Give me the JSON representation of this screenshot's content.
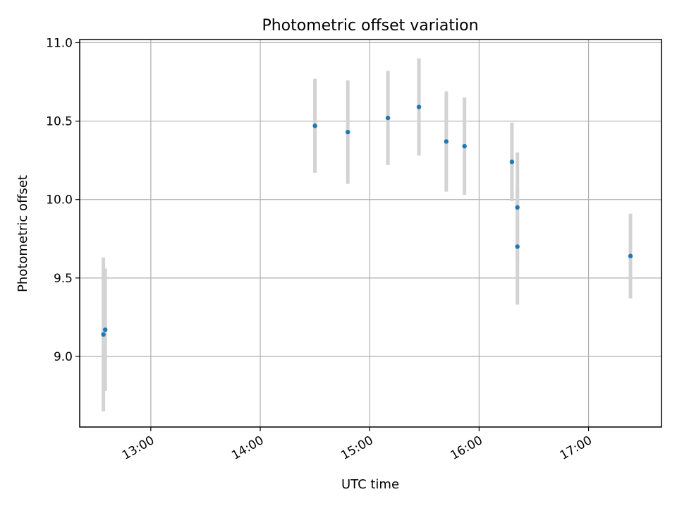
{
  "chart_data": {
    "type": "scatter",
    "title": "Photometric offset variation",
    "xlabel": "UTC time",
    "ylabel": "Photometric offset",
    "x_ticks": [
      "13:00",
      "14:00",
      "15:00",
      "16:00",
      "17:00"
    ],
    "y_ticks": [
      "9.0",
      "9.5",
      "10.0",
      "10.5",
      "11.0"
    ],
    "x_tick_times": [
      "13:00",
      "14:00",
      "15:00",
      "16:00",
      "17:00"
    ],
    "y_tick_values": [
      9.0,
      9.5,
      10.0,
      10.5,
      11.0
    ],
    "xlim": [
      "12:21",
      "17:40"
    ],
    "ylim": [
      8.55,
      11.02
    ],
    "grid": true,
    "errorbar_color": "#d3d3d3",
    "point_color": "#1f77b4",
    "points": [
      {
        "x": "12:34",
        "y": 9.14,
        "err": 0.49
      },
      {
        "x": "12:35",
        "y": 9.17,
        "err": 0.39
      },
      {
        "x": "14:30",
        "y": 10.47,
        "err": 0.3
      },
      {
        "x": "14:48",
        "y": 10.43,
        "err": 0.33
      },
      {
        "x": "15:10",
        "y": 10.52,
        "err": 0.3
      },
      {
        "x": "15:27",
        "y": 10.59,
        "err": 0.31
      },
      {
        "x": "15:42",
        "y": 10.37,
        "err": 0.32
      },
      {
        "x": "15:52",
        "y": 10.34,
        "err": 0.31
      },
      {
        "x": "16:18",
        "y": 10.24,
        "err": 0.25
      },
      {
        "x": "16:21",
        "y": 9.95,
        "err": 0.35
      },
      {
        "x": "16:21",
        "y": 9.7,
        "err": 0.37
      },
      {
        "x": "17:23",
        "y": 9.64,
        "err": 0.27
      }
    ]
  }
}
